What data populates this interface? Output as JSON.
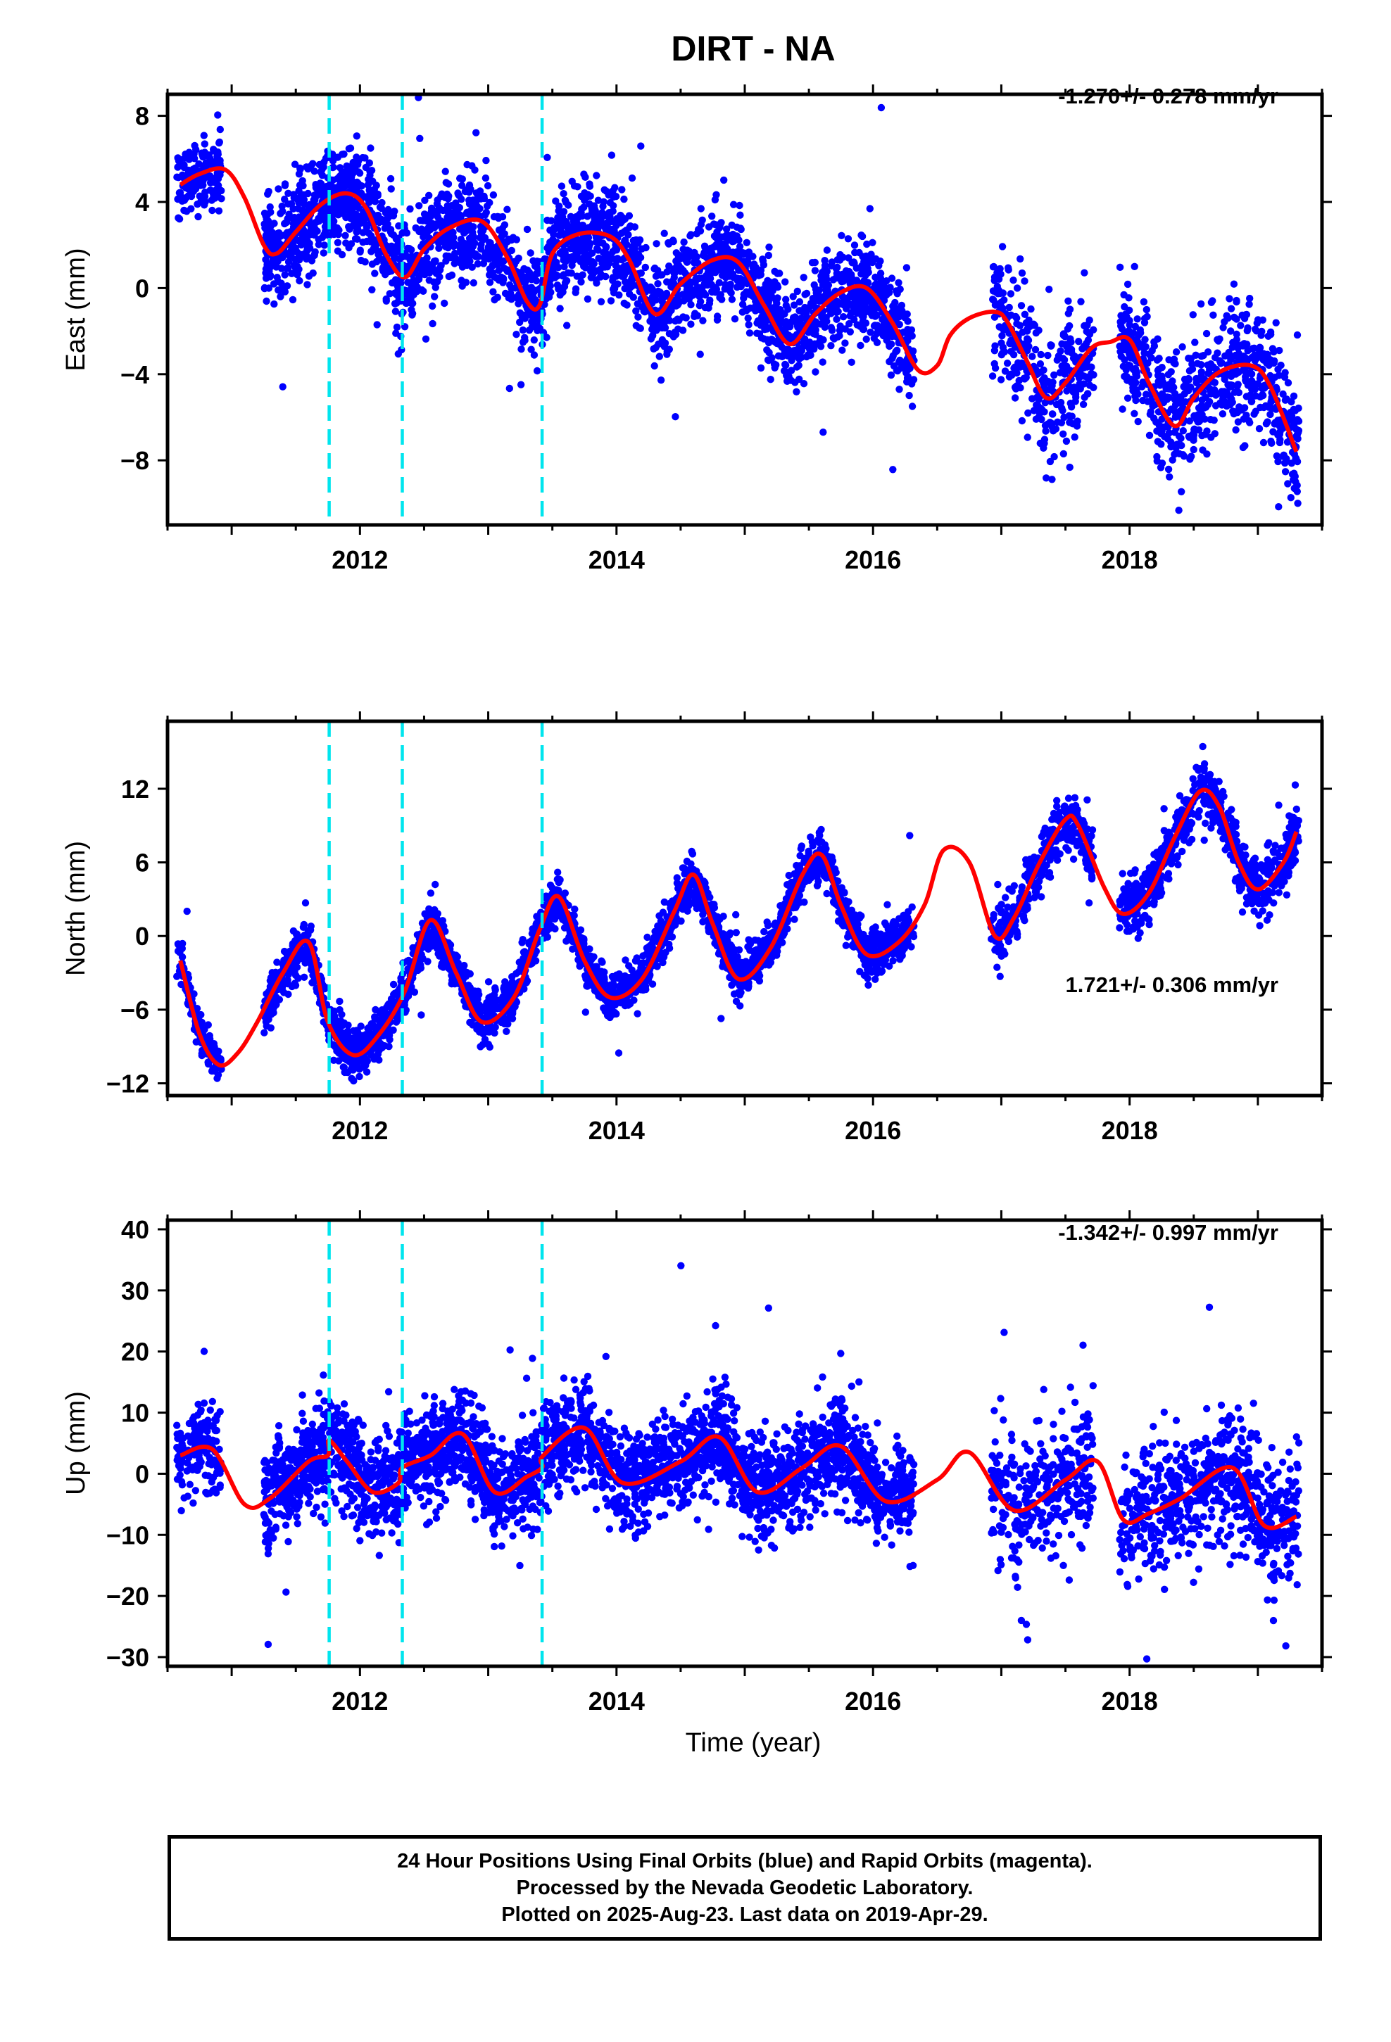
{
  "title": "DIRT - NA",
  "xlabel": "Time (year)",
  "footer": {
    "line1": "24 Hour Positions Using Final Orbits (blue) and Rapid Orbits (magenta).",
    "line2": "Processed by the Nevada Geodetic Laboratory.",
    "line3": "Plotted on 2025-Aug-23. Last data on 2019-Apr-29."
  },
  "colors": {
    "points": "#0000ff",
    "model": "#ff0000",
    "events": "#00e5ee",
    "frame": "#000000"
  },
  "chart_data": [
    {
      "type": "scatter",
      "component": "east",
      "ylabel": "East (mm)",
      "trend_label": "-1.270+/- 0.278 mm/yr",
      "xlim": [
        2010.5,
        2019.5
      ],
      "ylim": [
        -11.0,
        9.0
      ],
      "x_ticks": [
        2012,
        2014,
        2016,
        2018
      ],
      "y_ticks": [
        8,
        4,
        0,
        -4,
        -8
      ],
      "y_tick_labels": [
        "8",
        "4",
        "0",
        "−4",
        "−8"
      ],
      "event_lines_x": [
        2011.76,
        2012.33,
        2013.42
      ],
      "model": {
        "x": [
          2010.6,
          2010.75,
          2010.95,
          2011.1,
          2011.25,
          2011.35,
          2011.5,
          2011.7,
          2011.9,
          2012.05,
          2012.2,
          2012.35,
          2012.5,
          2012.7,
          2012.95,
          2013.15,
          2013.3,
          2013.4,
          2013.5,
          2013.7,
          2013.95,
          2014.1,
          2014.3,
          2014.5,
          2014.75,
          2014.95,
          2015.15,
          2015.35,
          2015.55,
          2015.75,
          2015.95,
          2016.15,
          2016.35,
          2016.5,
          2016.6,
          2016.75,
          2016.95,
          2017.05,
          2017.2,
          2017.35,
          2017.5,
          2017.7,
          2017.85,
          2018.0,
          2018.15,
          2018.35,
          2018.5,
          2018.7,
          2018.95,
          2019.1,
          2019.3
        ],
        "y": [
          4.8,
          5.3,
          5.5,
          4.2,
          2.0,
          1.6,
          2.6,
          3.9,
          4.4,
          3.7,
          1.6,
          0.5,
          1.8,
          2.8,
          3.1,
          1.4,
          -0.6,
          -0.8,
          1.6,
          2.5,
          2.4,
          1.3,
          -1.2,
          0.2,
          1.3,
          1.2,
          -0.8,
          -2.6,
          -1.2,
          -0.2,
          0.0,
          -1.6,
          -3.8,
          -3.6,
          -2.2,
          -1.4,
          -1.1,
          -1.6,
          -3.4,
          -5.1,
          -4.4,
          -2.8,
          -2.5,
          -2.4,
          -4.4,
          -6.4,
          -5.1,
          -3.9,
          -3.6,
          -4.6,
          -7.6
        ]
      },
      "point_segments": [
        {
          "x0": 2010.57,
          "x1": 2010.92,
          "n": 150,
          "sd": 1.0
        },
        {
          "x0": 2011.25,
          "x1": 2012.05,
          "n": 520,
          "sd": 1.2
        },
        {
          "x0": 2012.05,
          "x1": 2012.88,
          "n": 480,
          "sd": 1.2
        },
        {
          "x0": 2012.88,
          "x1": 2013.85,
          "n": 560,
          "sd": 1.2
        },
        {
          "x0": 2013.85,
          "x1": 2014.85,
          "n": 560,
          "sd": 1.2
        },
        {
          "x0": 2014.85,
          "x1": 2015.75,
          "n": 520,
          "sd": 1.1
        },
        {
          "x0": 2015.75,
          "x1": 2016.32,
          "n": 340,
          "sd": 1.1
        },
        {
          "x0": 2016.92,
          "x1": 2017.72,
          "n": 330,
          "sd": 1.6
        },
        {
          "x0": 2017.92,
          "x1": 2018.72,
          "n": 360,
          "sd": 1.5
        },
        {
          "x0": 2018.72,
          "x1": 2019.32,
          "n": 300,
          "sd": 1.5
        }
      ]
    },
    {
      "type": "scatter",
      "component": "north",
      "ylabel": "North (mm)",
      "trend_label": "1.721+/- 0.306 mm/yr",
      "xlim": [
        2010.5,
        2019.5
      ],
      "ylim": [
        -13.0,
        17.5
      ],
      "x_ticks": [
        2012,
        2014,
        2016,
        2018
      ],
      "y_ticks": [
        12,
        6,
        0,
        -6,
        -12
      ],
      "y_tick_labels": [
        "12",
        "6",
        "0",
        "−6",
        "−12"
      ],
      "event_lines_x": [
        2011.76,
        2012.33,
        2013.42
      ],
      "model": {
        "x": [
          2010.6,
          2010.75,
          2010.9,
          2011.05,
          2011.2,
          2011.4,
          2011.6,
          2011.75,
          2011.95,
          2012.15,
          2012.35,
          2012.55,
          2012.75,
          2012.95,
          2013.2,
          2013.4,
          2013.55,
          2013.75,
          2013.95,
          2014.2,
          2014.45,
          2014.6,
          2014.75,
          2014.95,
          2015.2,
          2015.45,
          2015.6,
          2015.75,
          2015.95,
          2016.2,
          2016.4,
          2016.55,
          2016.75,
          2016.95,
          2017.1,
          2017.3,
          2017.5,
          2017.6,
          2017.8,
          2017.95,
          2018.15,
          2018.35,
          2018.55,
          2018.7,
          2018.85,
          2019.0,
          2019.2,
          2019.3
        ],
        "y": [
          -2.0,
          -8.0,
          -10.5,
          -9.5,
          -7.0,
          -3.0,
          -0.5,
          -7.0,
          -9.7,
          -8.0,
          -4.5,
          1.3,
          -3.0,
          -7.0,
          -5.0,
          0.5,
          3.2,
          -2.0,
          -5.0,
          -3.5,
          2.0,
          5.0,
          1.0,
          -3.5,
          -1.0,
          5.0,
          6.6,
          2.5,
          -1.5,
          -0.5,
          2.5,
          7.0,
          6.0,
          0.0,
          1.5,
          6.0,
          9.5,
          9.0,
          4.0,
          1.8,
          3.5,
          8.0,
          11.8,
          10.5,
          6.0,
          3.8,
          6.0,
          8.5
        ]
      },
      "point_segments": [
        {
          "x0": 2010.57,
          "x1": 2010.92,
          "n": 150,
          "sd": 0.8
        },
        {
          "x0": 2011.25,
          "x1": 2012.05,
          "n": 520,
          "sd": 0.9
        },
        {
          "x0": 2012.05,
          "x1": 2012.88,
          "n": 480,
          "sd": 0.9
        },
        {
          "x0": 2012.88,
          "x1": 2013.85,
          "n": 560,
          "sd": 0.9
        },
        {
          "x0": 2013.85,
          "x1": 2014.85,
          "n": 560,
          "sd": 0.9
        },
        {
          "x0": 2014.85,
          "x1": 2015.75,
          "n": 520,
          "sd": 0.9
        },
        {
          "x0": 2015.75,
          "x1": 2016.32,
          "n": 340,
          "sd": 0.9
        },
        {
          "x0": 2016.92,
          "x1": 2017.72,
          "n": 330,
          "sd": 1.2
        },
        {
          "x0": 2017.92,
          "x1": 2018.72,
          "n": 360,
          "sd": 1.2
        },
        {
          "x0": 2018.72,
          "x1": 2019.32,
          "n": 300,
          "sd": 1.2
        }
      ]
    },
    {
      "type": "scatter",
      "component": "up",
      "ylabel": "Up (mm)",
      "trend_label": "-1.342+/- 0.997 mm/yr",
      "xlim": [
        2010.5,
        2019.5
      ],
      "ylim": [
        -31.5,
        41.5
      ],
      "x_ticks": [
        2012,
        2014,
        2016,
        2018
      ],
      "y_ticks": [
        40,
        30,
        20,
        10,
        0,
        -10,
        -20,
        -30
      ],
      "y_tick_labels": [
        "40",
        "30",
        "20",
        "10",
        "0",
        "−10",
        "−20",
        "−30"
      ],
      "event_lines_x": [
        2011.76,
        2012.33,
        2013.42
      ],
      "model": {
        "x": [
          2010.6,
          2010.85,
          2011.1,
          2011.3,
          2011.6,
          2011.75,
          2011.76,
          2011.9,
          2012.1,
          2012.3,
          2012.33,
          2012.55,
          2012.8,
          2013.05,
          2013.3,
          2013.42,
          2013.43,
          2013.75,
          2014.05,
          2014.5,
          2014.8,
          2015.1,
          2015.45,
          2015.75,
          2016.1,
          2016.5,
          2016.75,
          2017.1,
          2017.5,
          2017.75,
          2017.95,
          2018.15,
          2018.4,
          2018.8,
          2019.05,
          2019.3
        ],
        "y": [
          3.0,
          4.0,
          -5.0,
          -4.0,
          2.0,
          3.0,
          5.5,
          2.0,
          -3.0,
          -1.5,
          1.0,
          3.0,
          6.5,
          -3.0,
          -0.5,
          1.0,
          3.0,
          7.5,
          -1.5,
          2.0,
          6.0,
          -3.0,
          1.0,
          4.5,
          -4.5,
          -1.0,
          3.5,
          -6.0,
          -1.0,
          2.0,
          -7.5,
          -6.5,
          -4.0,
          1.0,
          -8.5,
          -7.0
        ]
      },
      "point_segments": [
        {
          "x0": 2010.57,
          "x1": 2010.92,
          "n": 150,
          "sd": 3.8
        },
        {
          "x0": 2011.25,
          "x1": 2012.05,
          "n": 520,
          "sd": 4.0
        },
        {
          "x0": 2012.05,
          "x1": 2012.88,
          "n": 480,
          "sd": 4.0
        },
        {
          "x0": 2012.88,
          "x1": 2013.85,
          "n": 560,
          "sd": 4.0
        },
        {
          "x0": 2013.85,
          "x1": 2014.85,
          "n": 560,
          "sd": 4.0
        },
        {
          "x0": 2014.85,
          "x1": 2015.75,
          "n": 520,
          "sd": 4.2
        },
        {
          "x0": 2015.75,
          "x1": 2016.32,
          "n": 340,
          "sd": 4.0
        },
        {
          "x0": 2016.92,
          "x1": 2017.72,
          "n": 330,
          "sd": 5.5
        },
        {
          "x0": 2017.92,
          "x1": 2018.72,
          "n": 360,
          "sd": 5.0
        },
        {
          "x0": 2018.72,
          "x1": 2019.32,
          "n": 300,
          "sd": 5.0
        }
      ]
    }
  ]
}
